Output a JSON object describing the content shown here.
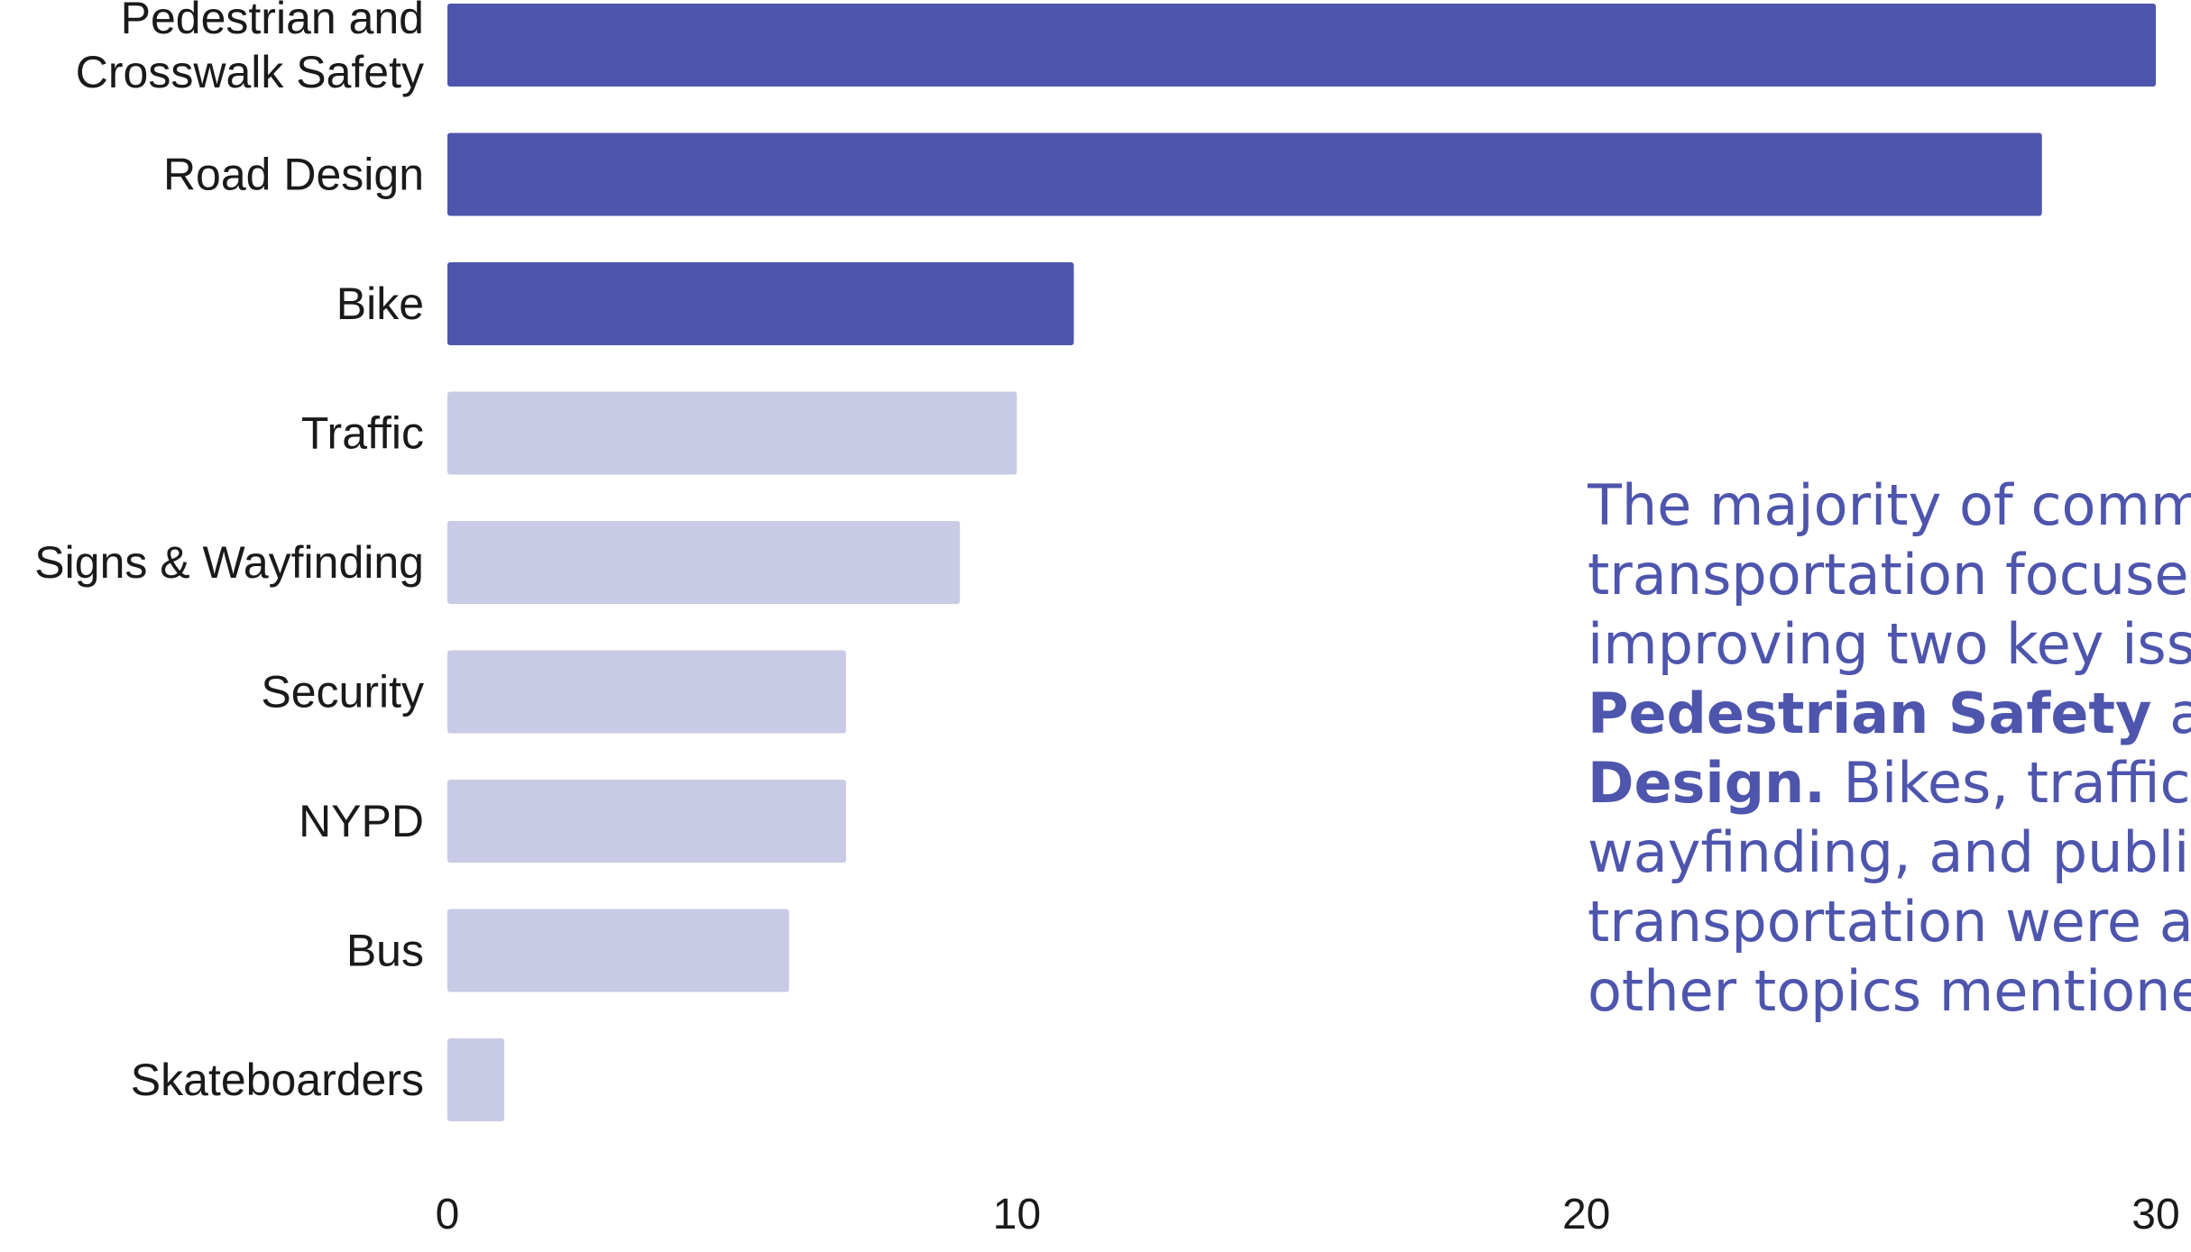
{
  "chart_data": {
    "type": "bar",
    "orientation": "horizontal",
    "categories": [
      "Pedestrian and Crosswalk Safety",
      "Road Design",
      "Bike",
      "Traffic",
      "Signs & Wayfinding",
      "Security",
      "NYPD",
      "Bus",
      "Skateboarders"
    ],
    "values": [
      30,
      28,
      11,
      10,
      9,
      7,
      7,
      6,
      1
    ],
    "highlighted": [
      true,
      true,
      true,
      false,
      false,
      false,
      false,
      false,
      false
    ],
    "xlim": [
      0,
      30
    ],
    "xticks": [
      0,
      10,
      20,
      30
    ],
    "grid": false,
    "colors": {
      "highlight": "#4e55ad",
      "muted": "#c8cae6",
      "text": "#1a1a1a",
      "annotation": "#4e55ad"
    }
  },
  "annotation": {
    "lines": [
      [
        {
          "text": "The majority of comme",
          "bold": false
        }
      ],
      [
        {
          "text": "transportation focused",
          "bold": false
        }
      ],
      [
        {
          "text": "improving two key issu",
          "bold": false
        }
      ],
      [
        {
          "text": "Pedestrian Safety",
          "bold": true
        },
        {
          "text": " and",
          "bold": false
        }
      ],
      [
        {
          "text": "Design.",
          "bold": true
        },
        {
          "text": "  Bikes, traffic,",
          "bold": false
        }
      ],
      [
        {
          "text": "wayfinding, and public",
          "bold": false
        }
      ],
      [
        {
          "text": "transportation were an",
          "bold": false
        }
      ],
      [
        {
          "text": "other topics mentioned",
          "bold": false
        }
      ]
    ]
  }
}
